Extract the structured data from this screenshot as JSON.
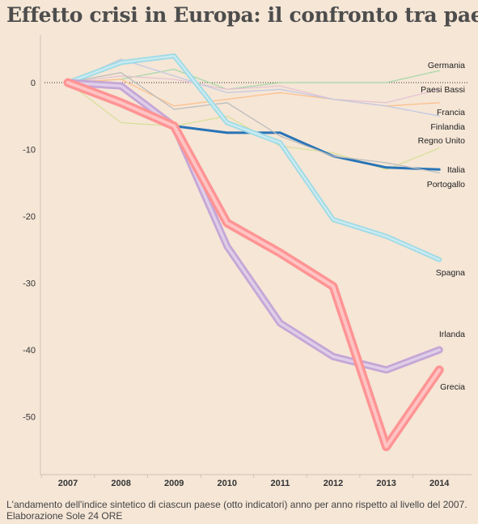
{
  "title": "Effetto crisi in Europa: il confronto tra paesi",
  "caption": "L'andamento dell'indice sintetico di ciascun paese (otto indicatori) anno per anno rispetto al livello del 2007. Elaborazione Sole 24 ORE",
  "chart_data": {
    "type": "line",
    "title": "Effetto crisi in Europa: il confronto tra paesi",
    "xlabel": "",
    "ylabel": "",
    "x": [
      "2007",
      "2008",
      "2009",
      "2010",
      "2011",
      "2012",
      "2013",
      "2014"
    ],
    "yticks": [
      0,
      -10,
      -20,
      -30,
      -40,
      -50
    ],
    "ylim": [
      -58,
      8
    ],
    "grid": false,
    "legend": "labels at line ends",
    "series": [
      {
        "name": "Germania",
        "color": "#a8d8a8",
        "values": [
          0,
          0.5,
          2,
          -1,
          0,
          0,
          0,
          1.8
        ]
      },
      {
        "name": "Paesi Bassi",
        "color": "#e6c3d2",
        "values": [
          0,
          1,
          0.5,
          -1,
          -0.5,
          -2.5,
          -3,
          -1
        ]
      },
      {
        "name": "Francia",
        "color": "#fdbf8c",
        "values": [
          0,
          0.5,
          -3.5,
          -2.5,
          -1.5,
          -2.5,
          -3.5,
          -3
        ]
      },
      {
        "name": "Finlandia",
        "color": "#c2c9e3",
        "values": [
          0,
          3.5,
          1,
          -1.5,
          -1,
          -2.5,
          -3.5,
          -5
        ]
      },
      {
        "name": "Regno Unito",
        "color": "#d9df9a",
        "values": [
          0,
          -6,
          -6.5,
          -5,
          -9.5,
          -10.5,
          -13,
          -9.8
        ]
      },
      {
        "name": "Italia",
        "color": "#2874b6",
        "values": [
          0,
          -0.3,
          -6.5,
          -7.5,
          -7.5,
          -11,
          -12.7,
          -13
        ]
      },
      {
        "name": "Portogallo",
        "color": "#bcbcbc",
        "values": [
          0,
          1.5,
          -4,
          -3,
          -8,
          -11,
          -12,
          -13.5
        ]
      },
      {
        "name": "Spagna",
        "color": "#9edae5",
        "values": [
          0,
          3,
          4,
          -6,
          -9,
          -20.5,
          -23,
          -26.5
        ]
      },
      {
        "name": "Irlanda",
        "color": "#c5a6d6",
        "values": [
          0,
          -0.5,
          -6.5,
          -24.5,
          -36,
          -41,
          -43,
          -40
        ]
      },
      {
        "name": "Grecia",
        "color": "#ff9494",
        "values": [
          0,
          -3,
          -6.5,
          -21,
          -25.5,
          -30.5,
          -54.5,
          -43
        ]
      }
    ]
  }
}
